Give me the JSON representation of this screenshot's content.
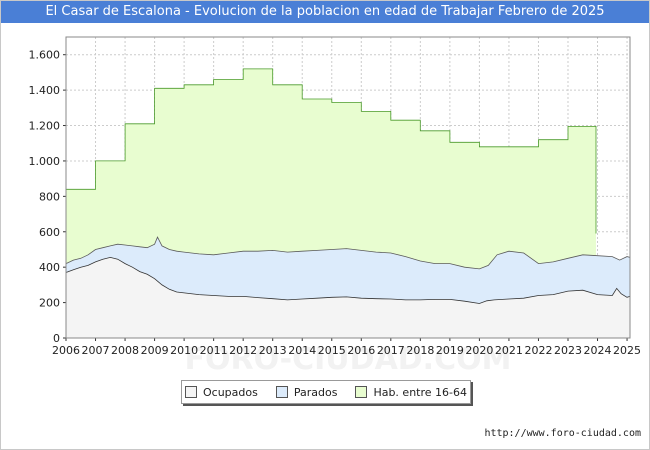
{
  "chart_data": {
    "type": "area",
    "title": "El Casar de Escalona - Evolucion de la poblacion en edad de Trabajar Febrero de 2025",
    "xlabel": "",
    "ylabel": "",
    "ylim": [
      0,
      1700
    ],
    "xlim": [
      2006,
      2025.1
    ],
    "y_ticks": [
      0,
      200,
      400,
      600,
      800,
      1000,
      1200,
      1400,
      1600
    ],
    "y_tick_labels": [
      "0",
      "200",
      "400",
      "600",
      "800",
      "1.000",
      "1.200",
      "1.400",
      "1.600"
    ],
    "x_ticks": [
      2006,
      2007,
      2008,
      2009,
      2010,
      2011,
      2012,
      2013,
      2014,
      2015,
      2016,
      2017,
      2018,
      2019,
      2020,
      2021,
      2022,
      2023,
      2024,
      2025
    ],
    "x_tick_labels": [
      "2006",
      "2007",
      "2008",
      "2009",
      "2010",
      "2011",
      "2012",
      "2013",
      "2014",
      "2015",
      "2016",
      "2017",
      "2018",
      "2019",
      "2020",
      "2021",
      "2022",
      "2023",
      "2024",
      "2025"
    ],
    "grid": true,
    "legend_position": "bottom-center",
    "series": [
      {
        "name": "Hab. entre 16-64",
        "color": "#e8fdd0",
        "stroke": "#4a9a2a",
        "step": true,
        "x": [
          2006,
          2007,
          2008,
          2009,
          2010,
          2011,
          2012,
          2013,
          2014,
          2015,
          2016,
          2017,
          2018,
          2019,
          2020,
          2021,
          2022,
          2023,
          2023.95
        ],
        "values": [
          840,
          1000,
          1210,
          1410,
          1430,
          1460,
          1520,
          1430,
          1350,
          1330,
          1280,
          1230,
          1170,
          1105,
          1080,
          1080,
          1120,
          1195,
          590
        ]
      },
      {
        "name": "Parados",
        "color": "#dcebfb",
        "stroke": "#5a5a5a",
        "x": [
          2006,
          2006.25,
          2006.5,
          2006.75,
          2007,
          2007.25,
          2007.5,
          2007.75,
          2008,
          2008.25,
          2008.5,
          2008.75,
          2009,
          2009.1,
          2009.25,
          2009.5,
          2009.75,
          2010,
          2010.5,
          2011,
          2011.5,
          2012,
          2012.5,
          2013,
          2013.5,
          2014,
          2014.5,
          2015,
          2015.5,
          2016,
          2016.5,
          2017,
          2017.5,
          2018,
          2018.5,
          2019,
          2019.5,
          2020,
          2020.3,
          2020.6,
          2021,
          2021.5,
          2022,
          2022.5,
          2023,
          2023.5,
          2024,
          2024.5,
          2024.75,
          2025,
          2025.1
        ],
        "values": [
          420,
          440,
          450,
          470,
          500,
          510,
          520,
          530,
          525,
          520,
          515,
          510,
          530,
          570,
          520,
          500,
          490,
          485,
          475,
          470,
          480,
          490,
          490,
          495,
          485,
          490,
          495,
          500,
          505,
          495,
          485,
          480,
          460,
          435,
          420,
          420,
          400,
          390,
          410,
          470,
          490,
          480,
          420,
          430,
          450,
          470,
          465,
          460,
          440,
          460,
          455
        ]
      },
      {
        "name": "Ocupados",
        "color": "#f4f4f4",
        "stroke": "#333333",
        "x": [
          2006,
          2006.25,
          2006.5,
          2006.75,
          2007,
          2007.25,
          2007.5,
          2007.75,
          2008,
          2008.25,
          2008.5,
          2008.75,
          2009,
          2009.25,
          2009.5,
          2009.75,
          2010,
          2010.5,
          2011,
          2011.5,
          2012,
          2012.5,
          2013,
          2013.5,
          2014,
          2014.5,
          2015,
          2015.5,
          2016,
          2016.5,
          2017,
          2017.5,
          2018,
          2018.5,
          2019,
          2019.5,
          2020,
          2020.25,
          2020.5,
          2021,
          2021.5,
          2022,
          2022.5,
          2023,
          2023.5,
          2024,
          2024.5,
          2024.65,
          2024.8,
          2025,
          2025.1
        ],
        "values": [
          370,
          385,
          400,
          410,
          430,
          445,
          455,
          445,
          420,
          400,
          375,
          360,
          335,
          300,
          275,
          260,
          255,
          245,
          240,
          235,
          235,
          228,
          222,
          215,
          220,
          225,
          230,
          232,
          225,
          222,
          220,
          215,
          215,
          218,
          218,
          208,
          195,
          210,
          215,
          220,
          225,
          240,
          245,
          265,
          270,
          245,
          240,
          280,
          250,
          230,
          235
        ]
      }
    ]
  },
  "legend": {
    "items": [
      {
        "label": "Ocupados",
        "color": "#f4f4f4"
      },
      {
        "label": "Parados",
        "color": "#dcebfb"
      },
      {
        "label": "Hab. entre 16-64",
        "color": "#e8fdd0"
      }
    ]
  },
  "source": "http://www.foro-ciudad.com",
  "watermark": "FORO-CIUDAD.COM"
}
